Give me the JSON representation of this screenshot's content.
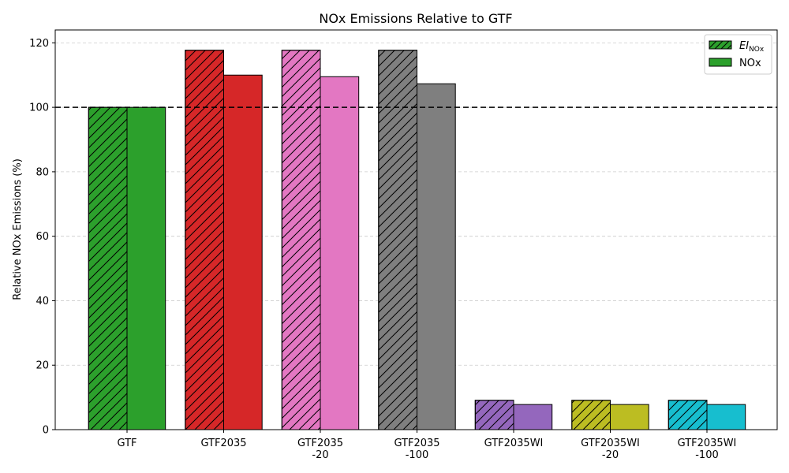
{
  "chart_data": {
    "type": "bar",
    "title": "NOx Emissions Relative to GTF",
    "xlabel": "",
    "ylabel": "Relative NOx Emissions (%)",
    "ylim": [
      0,
      124
    ],
    "yticks": [
      0,
      20,
      40,
      60,
      80,
      100,
      120
    ],
    "grid": "horizontal dashed",
    "legend_position": "top-right",
    "reference_line": {
      "y": 100,
      "style": "dashed",
      "color": "#000000"
    },
    "categories": [
      [
        "GTF"
      ],
      [
        "GTF2035"
      ],
      [
        "GTF2035",
        "-20"
      ],
      [
        "GTF2035",
        "-100"
      ],
      [
        "GTF2035WI"
      ],
      [
        "GTF2035WI",
        "-20"
      ],
      [
        "GTF2035WI",
        "-100"
      ]
    ],
    "colors": [
      "#2ca02c",
      "#d62728",
      "#e377c2",
      "#7f7f7f",
      "#9467bd",
      "#bcbd22",
      "#17becf"
    ],
    "series": [
      {
        "name": "EI_NOx",
        "label_main": "EI",
        "label_sub": "NOx",
        "hatch": true,
        "values": [
          100,
          117.7,
          117.7,
          117.7,
          9.1,
          9.1,
          9.1
        ]
      },
      {
        "name": "NOx",
        "label_main": "NOx",
        "hatch": false,
        "values": [
          100,
          110.0,
          109.5,
          107.3,
          7.8,
          7.8,
          7.8
        ]
      }
    ]
  }
}
